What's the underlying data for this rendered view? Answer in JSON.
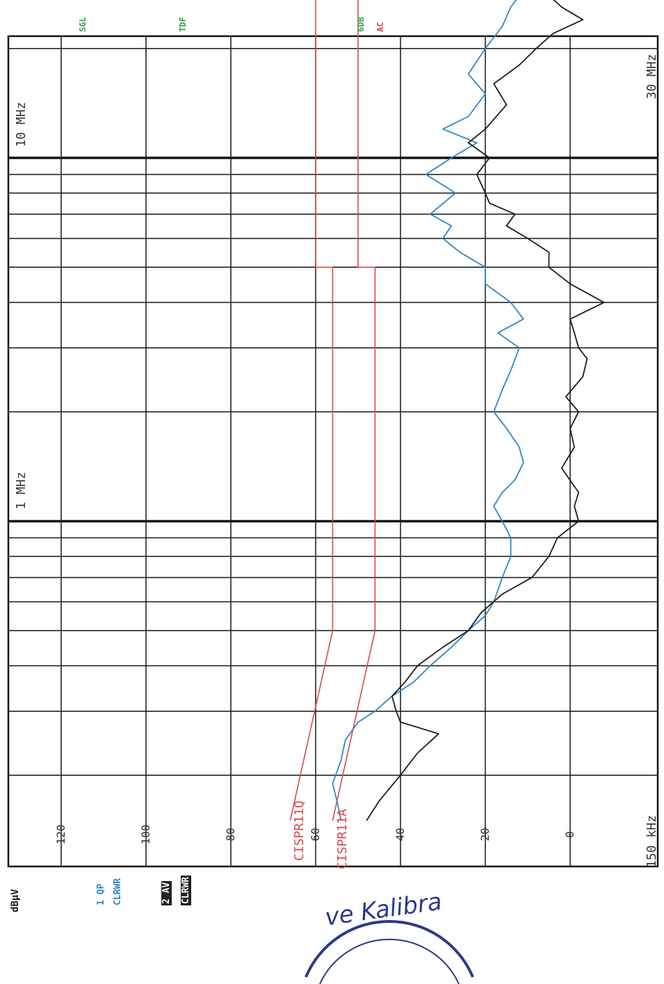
{
  "header": {
    "unit": "dBµV",
    "trace1_mode": "1 QP",
    "trace1_state": "CLRWR",
    "trace2_mode": "2 AV",
    "trace2_state": "CLRWR",
    "sgl": "SGL",
    "tdf": "TDF",
    "sixdb": "6DB",
    "ac": "AC"
  },
  "limit_labels": {
    "qp": "CISPR11Q",
    "av": "CISPR11A"
  },
  "stamp_text": "ve Kalibra",
  "colors": {
    "qp_trace": "#2f86c6",
    "av_trace": "#1c1c1c",
    "limit": "#d8484c",
    "grid": "#141414"
  },
  "chart_data": {
    "type": "line",
    "x_scale": "log",
    "xlim_mhz": [
      0.15,
      30
    ],
    "ylim": [
      -10,
      130
    ],
    "ylabel": "dBµV",
    "x_labels": [
      "150 kHz",
      "1 MHz",
      "10 MHz",
      "30 MHz"
    ],
    "y_ticks": [
      120,
      100,
      80,
      60,
      40,
      20,
      0
    ],
    "grid": true,
    "series": [
      {
        "name": "1 QP",
        "color": "#2f86c6",
        "points": [
          [
            0.15,
            54
          ],
          [
            0.17,
            55
          ],
          [
            0.19,
            56
          ],
          [
            0.22,
            54
          ],
          [
            0.25,
            53
          ],
          [
            0.28,
            50
          ],
          [
            0.3,
            46
          ],
          [
            0.33,
            42
          ],
          [
            0.36,
            37
          ],
          [
            0.4,
            33
          ],
          [
            0.45,
            28
          ],
          [
            0.5,
            24
          ],
          [
            0.55,
            20
          ],
          [
            0.6,
            18
          ],
          [
            0.7,
            16
          ],
          [
            0.8,
            14
          ],
          [
            0.9,
            14
          ],
          [
            1.0,
            16
          ],
          [
            1.1,
            18
          ],
          [
            1.2,
            16
          ],
          [
            1.3,
            13
          ],
          [
            1.45,
            11
          ],
          [
            1.6,
            12
          ],
          [
            1.8,
            15
          ],
          [
            2.0,
            18
          ],
          [
            2.3,
            16
          ],
          [
            2.6,
            14
          ],
          [
            3.0,
            12
          ],
          [
            3.3,
            17
          ],
          [
            3.6,
            11
          ],
          [
            4.0,
            14
          ],
          [
            4.5,
            20
          ],
          [
            5.0,
            20
          ],
          [
            5.5,
            26
          ],
          [
            6.0,
            30
          ],
          [
            6.5,
            28
          ],
          [
            7.0,
            33
          ],
          [
            8.0,
            27
          ],
          [
            9.0,
            34
          ],
          [
            10,
            28
          ],
          [
            11,
            22
          ],
          [
            12,
            30
          ],
          [
            13,
            24
          ],
          [
            15,
            20
          ],
          [
            17,
            24
          ],
          [
            20,
            20
          ],
          [
            23,
            16
          ],
          [
            26,
            14
          ],
          [
            30,
            10
          ],
          [
            32,
            6
          ]
        ]
      },
      {
        "name": "2 AV",
        "color": "#1c1c1c",
        "points": [
          [
            0.15,
            48
          ],
          [
            0.17,
            45
          ],
          [
            0.2,
            40
          ],
          [
            0.23,
            36
          ],
          [
            0.26,
            31
          ],
          [
            0.28,
            40
          ],
          [
            0.3,
            41
          ],
          [
            0.33,
            42
          ],
          [
            0.36,
            39
          ],
          [
            0.4,
            36
          ],
          [
            0.45,
            30
          ],
          [
            0.5,
            24
          ],
          [
            0.56,
            21
          ],
          [
            0.63,
            16
          ],
          [
            0.7,
            9
          ],
          [
            0.8,
            5
          ],
          [
            0.9,
            3
          ],
          [
            1.0,
            -2
          ],
          [
            1.1,
            -1
          ],
          [
            1.2,
            -2
          ],
          [
            1.4,
            2
          ],
          [
            1.6,
            -1
          ],
          [
            1.8,
            0
          ],
          [
            2.0,
            -2
          ],
          [
            2.2,
            1
          ],
          [
            2.5,
            -3
          ],
          [
            2.8,
            -4
          ],
          [
            3.0,
            -2
          ],
          [
            3.3,
            -1
          ],
          [
            3.6,
            0
          ],
          [
            4.0,
            -8
          ],
          [
            4.5,
            0
          ],
          [
            5.0,
            5
          ],
          [
            5.5,
            5
          ],
          [
            6.0,
            10
          ],
          [
            6.5,
            15
          ],
          [
            7.0,
            13
          ],
          [
            7.5,
            19
          ],
          [
            8.0,
            20
          ],
          [
            9.0,
            22
          ],
          [
            10,
            19
          ],
          [
            11,
            24
          ],
          [
            12,
            20
          ],
          [
            14,
            15
          ],
          [
            16,
            18
          ],
          [
            18,
            12
          ],
          [
            20,
            8
          ],
          [
            22,
            4
          ],
          [
            24,
            -3
          ],
          [
            26,
            2
          ],
          [
            28,
            5
          ],
          [
            30,
            -3
          ],
          [
            32,
            0
          ]
        ]
      },
      {
        "name": "CISPR11Q",
        "color": "#d8484c",
        "points": [
          [
            0.15,
            66
          ],
          [
            0.5,
            56
          ],
          [
            5,
            56
          ],
          [
            5,
            60
          ],
          [
            30,
            60
          ]
        ]
      },
      {
        "name": "CISPR11A",
        "color": "#d8484c",
        "points": [
          [
            0.15,
            56
          ],
          [
            0.5,
            46
          ],
          [
            5,
            46
          ],
          [
            5,
            50
          ],
          [
            30,
            50
          ]
        ]
      }
    ]
  }
}
